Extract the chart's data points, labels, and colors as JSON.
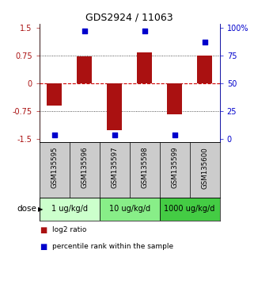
{
  "title": "GDS2924 / 11063",
  "samples": [
    "GSM135595",
    "GSM135596",
    "GSM135597",
    "GSM135598",
    "GSM135599",
    "GSM135600"
  ],
  "log2_ratios": [
    -0.6,
    0.72,
    -1.28,
    0.82,
    -0.85,
    0.75
  ],
  "percentile_ranks": [
    3,
    97,
    3,
    97,
    3,
    87
  ],
  "dose_groups": [
    {
      "label": "1 ug/kg/d",
      "indices": [
        0,
        1
      ],
      "color": "#ccffcc"
    },
    {
      "label": "10 ug/kg/d",
      "indices": [
        2,
        3
      ],
      "color": "#88ee88"
    },
    {
      "label": "1000 ug/kg/d",
      "indices": [
        4,
        5
      ],
      "color": "#44cc44"
    }
  ],
  "ylim": [
    -1.6,
    1.6
  ],
  "yticks_left": [
    -1.5,
    -0.75,
    0,
    0.75,
    1.5
  ],
  "yticks_right_labels": [
    "0",
    "25",
    "50",
    "75",
    "100%"
  ],
  "yticks_right_pct": [
    0,
    25,
    50,
    75,
    100
  ],
  "bar_color": "#aa1111",
  "dot_color": "#0000cc",
  "hline0_color": "#cc0000",
  "dotted_color": "#222222",
  "bar_width": 0.5,
  "label_bg": "#cccccc"
}
